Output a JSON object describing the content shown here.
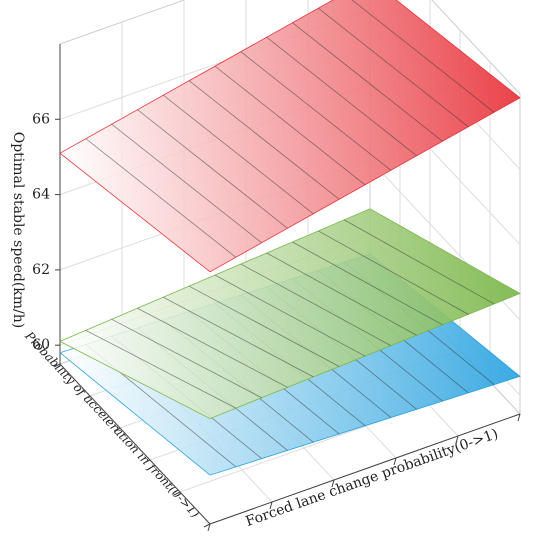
{
  "chart_data": {
    "type": "surface",
    "zlabel": "Optimal stable speed(km/h)",
    "xlabel": "Forced lane change probability(0->1)",
    "ylabel": "Probability of acceleration in front(0->1)",
    "zlim": [
      59.5,
      68
    ],
    "zticks": [
      60,
      62,
      64,
      66
    ],
    "grid": true,
    "series": [
      {
        "color": "#2aa3e0",
        "values": [
          [
            59.8,
            59.5
          ],
          [
            60.8,
            60.5
          ]
        ]
      },
      {
        "color": "#7ab648",
        "values": [
          [
            60.1,
            60.7
          ],
          [
            62.3,
            62.7
          ]
        ]
      },
      {
        "color": "#e8333a",
        "values": [
          [
            65.1,
            66.8
          ],
          [
            66.2,
            67.9
          ]
        ]
      }
    ]
  }
}
